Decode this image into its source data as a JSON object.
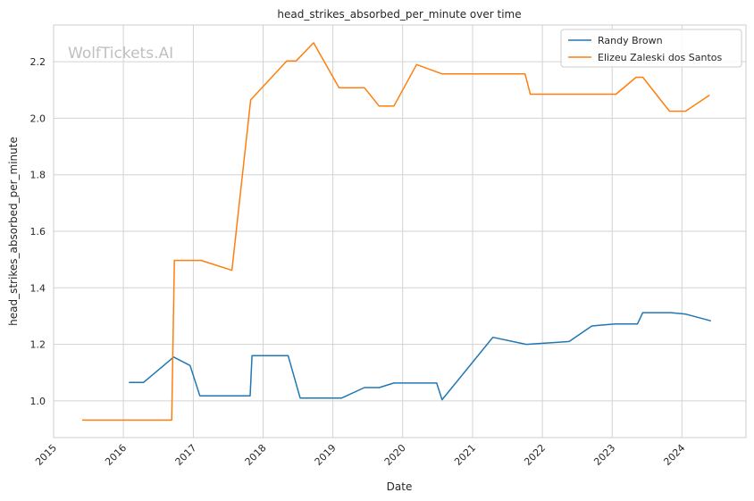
{
  "watermark": "WolfTickets.AI",
  "chart_data": {
    "type": "line",
    "title": "head_strikes_absorbed_per_minute over time",
    "xlabel": "Date",
    "ylabel": "head_strikes_absorbed_per_minute",
    "x_ticks": [
      "2015",
      "2016",
      "2017",
      "2018",
      "2019",
      "2020",
      "2021",
      "2022",
      "2023",
      "2024"
    ],
    "y_ticks": [
      "1.0",
      "1.2",
      "1.4",
      "1.6",
      "1.8",
      "2.0",
      "2.2"
    ],
    "ylim": [
      0.87,
      2.33
    ],
    "xlim": [
      "2015-01-01",
      "2024-12-01"
    ],
    "grid": true,
    "legend_position": "top-right",
    "series": [
      {
        "name": "Randy Brown",
        "color": "#1f77b4",
        "points": [
          [
            "2016-01-30",
            1.065
          ],
          [
            "2016-04-15",
            1.065
          ],
          [
            "2016-09-20",
            1.155
          ],
          [
            "2016-12-15",
            1.125
          ],
          [
            "2017-02-04",
            1.018
          ],
          [
            "2017-10-25",
            1.018
          ],
          [
            "2017-11-04",
            1.16
          ],
          [
            "2018-05-12",
            1.16
          ],
          [
            "2018-07-14",
            1.01
          ],
          [
            "2019-02-16",
            1.01
          ],
          [
            "2019-06-15",
            1.047
          ],
          [
            "2019-08-31",
            1.047
          ],
          [
            "2019-11-16",
            1.063
          ],
          [
            "2020-06-27",
            1.063
          ],
          [
            "2020-07-25",
            1.004
          ],
          [
            "2021-04-17",
            1.225
          ],
          [
            "2021-10-09",
            1.2
          ],
          [
            "2022-05-21",
            1.21
          ],
          [
            "2022-09-17",
            1.265
          ],
          [
            "2023-01-15",
            1.272
          ],
          [
            "2023-05-13",
            1.272
          ],
          [
            "2023-06-10",
            1.312
          ],
          [
            "2023-11-04",
            1.312
          ],
          [
            "2024-01-20",
            1.307
          ],
          [
            "2024-06-01",
            1.283
          ]
        ]
      },
      {
        "name": "Elizeu Zaleski dos Santos",
        "color": "#ff7f0e",
        "points": [
          [
            "2015-05-30",
            0.932
          ],
          [
            "2016-09-10",
            0.932
          ],
          [
            "2016-09-24",
            1.497
          ],
          [
            "2017-02-11",
            1.497
          ],
          [
            "2017-07-22",
            1.462
          ],
          [
            "2017-10-28",
            2.065
          ],
          [
            "2018-05-05",
            2.203
          ],
          [
            "2018-06-23",
            2.203
          ],
          [
            "2018-09-22",
            2.267
          ],
          [
            "2019-02-02",
            2.108
          ],
          [
            "2019-06-15",
            2.108
          ],
          [
            "2019-08-31",
            2.043
          ],
          [
            "2019-11-16",
            2.043
          ],
          [
            "2020-03-14",
            2.19
          ],
          [
            "2020-07-25",
            2.157
          ],
          [
            "2021-10-02",
            2.157
          ],
          [
            "2021-10-30",
            2.085
          ],
          [
            "2023-01-21",
            2.085
          ],
          [
            "2023-05-06",
            2.145
          ],
          [
            "2023-06-10",
            2.145
          ],
          [
            "2023-10-28",
            2.025
          ],
          [
            "2024-01-20",
            2.025
          ],
          [
            "2024-05-25",
            2.082
          ]
        ]
      }
    ]
  }
}
